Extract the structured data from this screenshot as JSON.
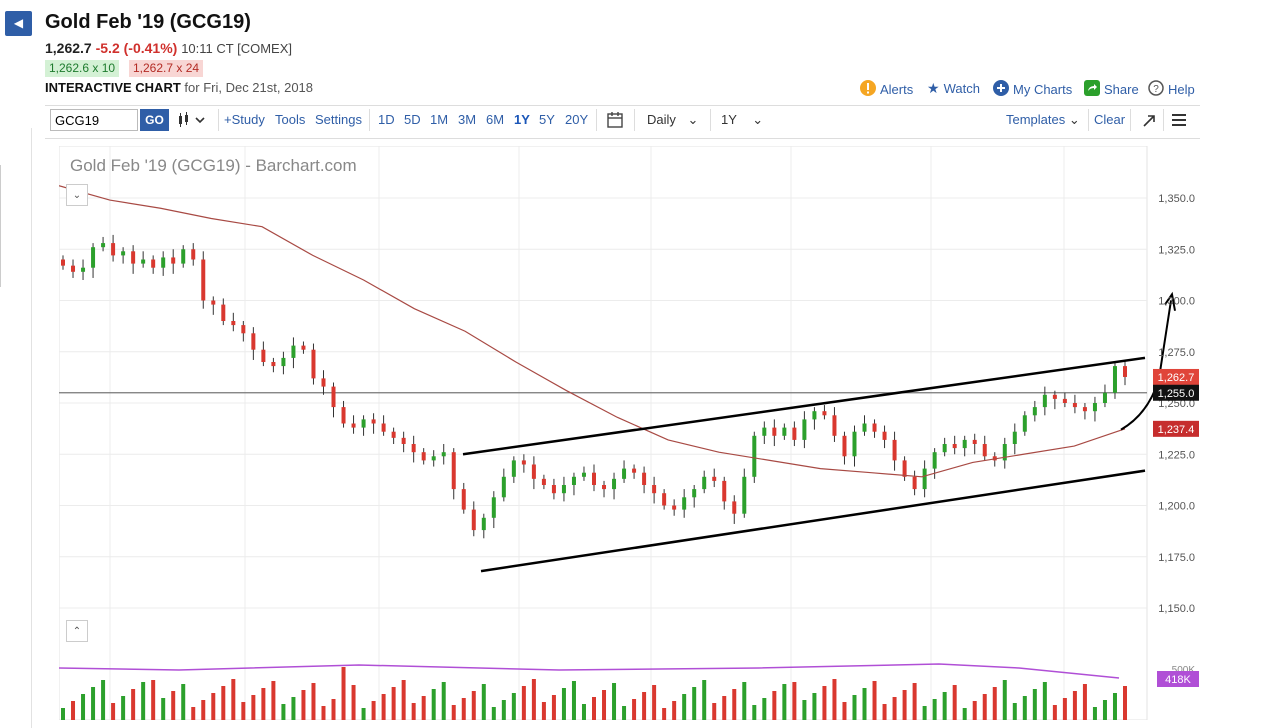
{
  "header": {
    "title": "Gold Feb '19 (GCG19)",
    "last": "1,262.7",
    "change": "-5.2 (-0.41%)",
    "time": "10:11 CT [COMEX]",
    "bid": "1,262.6 x 10",
    "ask": "1,262.7 x 24",
    "chart_kind": "INTERACTIVE CHART",
    "chart_for": "for Fri, Dec 21st, 2018"
  },
  "links": {
    "alerts": "Alerts",
    "watch": "Watch",
    "my_charts": "My Charts",
    "share": "Share",
    "help": "Help"
  },
  "toolbar": {
    "symbol": "GCG19",
    "go": "GO",
    "study": "+Study",
    "tools": "Tools",
    "settings": "Settings",
    "ranges": [
      "1D",
      "5D",
      "1M",
      "3M",
      "6M",
      "1Y",
      "5Y",
      "20Y"
    ],
    "active_range": "1Y",
    "interval": "Daily",
    "period": "1Y",
    "templates": "Templates",
    "clear": "Clear"
  },
  "colors": {
    "accent": "#2f5ea7",
    "up": "#2ca02c",
    "down": "#d9382f",
    "ma": "#a84a44",
    "volume_ma": "#b04fd6"
  },
  "chart_data": {
    "type": "candlestick",
    "title": "Gold Feb '19 (GCG19) - Barchart.com",
    "ylim": [
      1150,
      1350
    ],
    "yticks": [
      "1,350.0",
      "1,325.0",
      "1,300.0",
      "1,275.0",
      "1,250.0",
      "1,225.0",
      "1,200.0",
      "1,175.0",
      "1,150.0"
    ],
    "tick_values": [
      1350,
      1325,
      1300,
      1275,
      1250,
      1225,
      1200,
      1175,
      1150
    ],
    "price_tags": [
      {
        "label": "1,262.7",
        "value": 1262.7,
        "color": "#e0453a"
      },
      {
        "label": "1,255.0",
        "value": 1255.0,
        "color": "#111111"
      },
      {
        "label": "1,237.4",
        "value": 1237.4,
        "color": "#c62d2d"
      }
    ],
    "horizontal_line": 1255,
    "closes": [
      1317,
      1314,
      1316,
      1326,
      1328,
      1322,
      1324,
      1318,
      1320,
      1316,
      1321,
      1318,
      1325,
      1320,
      1300,
      1298,
      1290,
      1288,
      1284,
      1276,
      1270,
      1268,
      1272,
      1278,
      1276,
      1262,
      1258,
      1248,
      1240,
      1238,
      1242,
      1240,
      1236,
      1233,
      1230,
      1226,
      1222,
      1224,
      1226,
      1208,
      1198,
      1188,
      1194,
      1204,
      1214,
      1222,
      1220,
      1213,
      1210,
      1206,
      1210,
      1214,
      1216,
      1210,
      1208,
      1213,
      1218,
      1216,
      1210,
      1206,
      1200,
      1198,
      1204,
      1208,
      1214,
      1212,
      1202,
      1196,
      1214,
      1234,
      1238,
      1234,
      1238,
      1232,
      1242,
      1246,
      1244,
      1234,
      1224,
      1236,
      1240,
      1236,
      1232,
      1222,
      1214,
      1208,
      1218,
      1226,
      1230,
      1228,
      1232,
      1230,
      1224,
      1222,
      1230,
      1236,
      1244,
      1248,
      1254,
      1252,
      1250,
      1248,
      1246,
      1250,
      1255,
      1268,
      1262.7
    ],
    "ma": [
      1356,
      1349,
      1345,
      1340,
      1336,
      1322,
      1310,
      1296,
      1285,
      1270,
      1256,
      1243,
      1232,
      1226,
      1222,
      1218,
      1216,
      1214,
      1221,
      1225,
      1229,
      1237.4
    ],
    "trendlines": [
      {
        "from": [
          "1225",
          "start"
        ],
        "to": [
          "1272",
          "end"
        ]
      },
      {
        "from": [
          "1168",
          "start"
        ],
        "to": [
          "1217",
          "end"
        ]
      }
    ],
    "volume_label": "418K",
    "volume_axis_label": "500K"
  }
}
